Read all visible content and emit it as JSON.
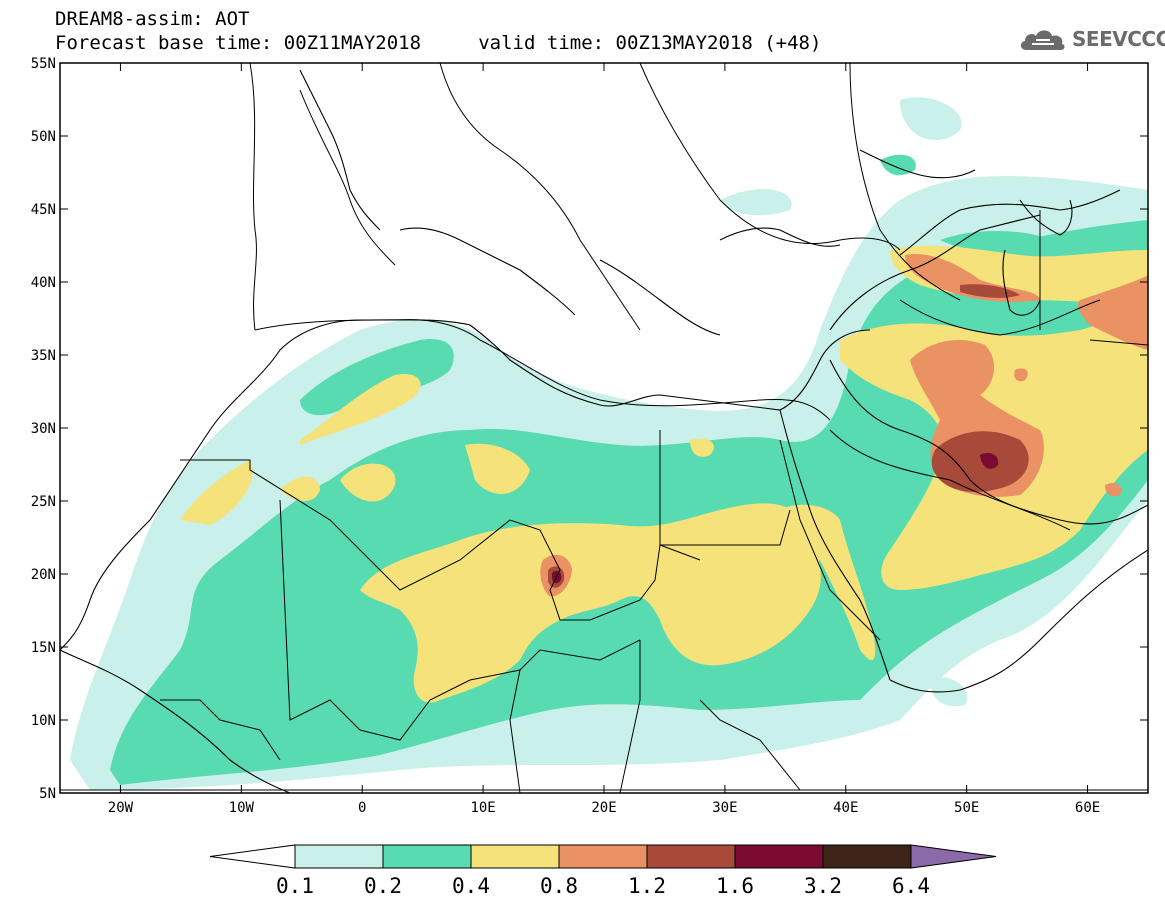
{
  "header": {
    "line1": "DREAM8-assim: AOT",
    "line2": "Forecast base time: 00Z11MAY2018     valid time: 00Z13MAY2018 (+48)"
  },
  "logo": {
    "text": "SEEVCCC",
    "icon": "cloud-icon"
  },
  "map": {
    "lon_range": [
      -25,
      65
    ],
    "lat_range": [
      5,
      55
    ],
    "lat_ticks": [
      "5N",
      "10N",
      "15N",
      "20N",
      "25N",
      "30N",
      "35N",
      "40N",
      "45N",
      "50N",
      "55N"
    ],
    "lon_ticks": [
      "20W",
      "10W",
      "0",
      "10E",
      "20E",
      "30E",
      "40E",
      "50E",
      "60E"
    ],
    "field": "AOT (aerosol optical thickness)"
  },
  "colorbar": {
    "colors": [
      "#ffffff",
      "#c9f0ea",
      "#58dbb0",
      "#f5e27a",
      "#eb9265",
      "#a84a3a",
      "#7a0a30",
      "#3c2418",
      "#8a6aa8"
    ],
    "labels": [
      "0.1",
      "0.2",
      "0.4",
      "0.8",
      "1.2",
      "1.6",
      "3.2",
      "6.4"
    ]
  }
}
